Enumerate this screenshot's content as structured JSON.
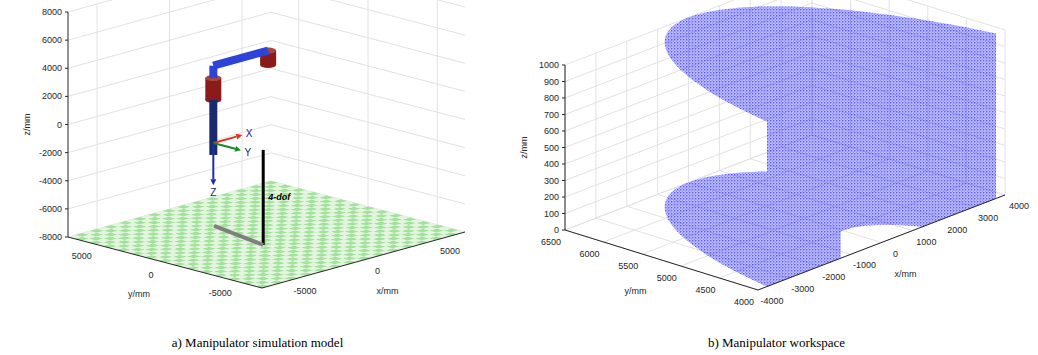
{
  "chart_data": [
    {
      "type": "3d_model",
      "title": "a) Manipulator simulation model",
      "xlabel": "x/mm",
      "ylabel": "y/mm",
      "zlabel": "z/mm",
      "xlim": [
        -7000,
        7000
      ],
      "ylim": [
        -7000,
        7000
      ],
      "zlim": [
        -8000,
        8000
      ],
      "xticks": [
        -5000,
        0,
        5000
      ],
      "yticks": [
        -5000,
        0,
        5000
      ],
      "zticks": [
        -8000,
        -6000,
        -4000,
        -2000,
        0,
        2000,
        4000,
        6000,
        8000
      ],
      "grid": true,
      "frame": {
        "origin": [
          -4480,
          -850,
          0
        ],
        "axes": [
          {
            "label": "X",
            "to": [
              -2480,
              -850,
              0
            ],
            "color": "#e03020"
          },
          {
            "label": "Y",
            "to": [
              -4480,
              -2850,
              0
            ],
            "color": "#1a8a2a"
          },
          {
            "label": "Z",
            "to": [
              -4480,
              -850,
              -3000
            ],
            "color": "#1a2fa0"
          }
        ]
      },
      "joints": [
        {
          "bottom": [
            -4480,
            -850,
            3060
          ],
          "top": [
            -4480,
            -850,
            4620
          ],
          "color": "#8b1a1a"
        },
        {
          "bottom": [
            -700,
            -850,
            4480
          ],
          "top": [
            -700,
            -850,
            5500
          ],
          "color": "#8b1a1a"
        }
      ],
      "links": [
        {
          "from": [
            -4480,
            -850,
            -850
          ],
          "to": [
            -4480,
            -850,
            3060
          ],
          "color": "#1b2a6e"
        },
        {
          "from": [
            -4480,
            -850,
            4620
          ],
          "to": [
            -4480,
            -850,
            5500
          ],
          "color": "#2e44d8"
        },
        {
          "from": [
            -4480,
            -850,
            5500
          ],
          "to": [
            -700,
            -850,
            5500
          ],
          "color": "#2e44d8"
        }
      ],
      "segments": [
        {
          "from": [
            -1450,
            -1280,
            -8000
          ],
          "to": [
            -1450,
            -1280,
            -1240
          ],
          "color": "#000000",
          "label": "4-dof"
        },
        {
          "from": [
            -1450,
            -1280,
            -8000
          ],
          "to": [
            -670,
            3080,
            -8000
          ],
          "color": "#7f7f7f"
        }
      ]
    },
    {
      "type": "scatter3d",
      "title": "b) Manipulator workspace",
      "xlabel": "x/mm",
      "ylabel": "y/mm",
      "zlabel": "z/mm",
      "xlim": [
        -4000,
        4000
      ],
      "ylim": [
        4000,
        6500
      ],
      "zlim": [
        0,
        1000
      ],
      "xticks": [
        -4000,
        -3000,
        -2000,
        -1000,
        0,
        1000,
        2000,
        3000,
        4000
      ],
      "yticks": [
        4000,
        4500,
        5000,
        5500,
        6000,
        6500
      ],
      "zticks": [
        0,
        100,
        200,
        300,
        400,
        500,
        600,
        700,
        800,
        900,
        1000
      ],
      "grid": true,
      "color": "#0000ff",
      "marker": "point",
      "workspace": {
        "center": [
          0,
          2500
        ],
        "r_inner": 2000,
        "r_outer": 4000,
        "z": [
          0,
          1000
        ]
      }
    }
  ]
}
